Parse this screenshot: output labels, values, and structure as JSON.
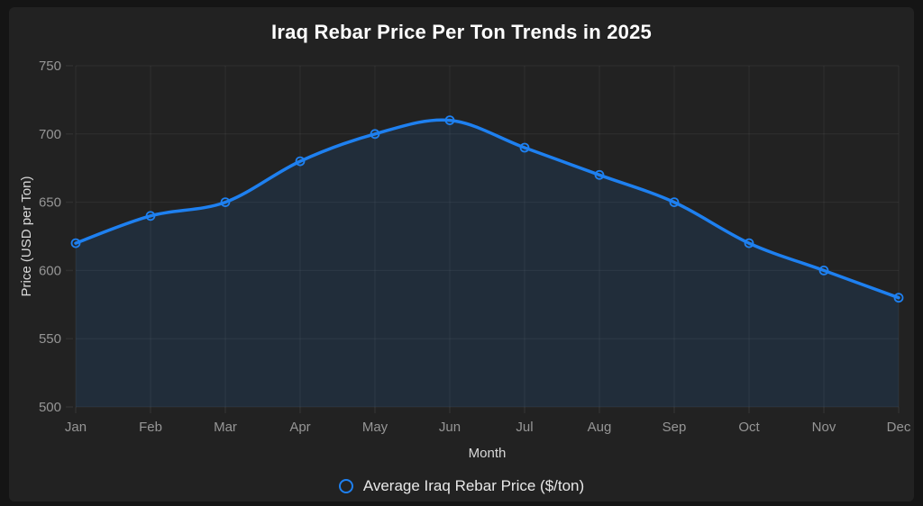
{
  "chart_data": {
    "type": "line",
    "title": "Iraq Rebar Price Per Ton Trends in 2025",
    "xlabel": "Month",
    "ylabel": "Price (USD per Ton)",
    "categories": [
      "Jan",
      "Feb",
      "Mar",
      "Apr",
      "May",
      "Jun",
      "Jul",
      "Aug",
      "Sep",
      "Oct",
      "Nov",
      "Dec"
    ],
    "series": [
      {
        "name": "Average Iraq Rebar Price ($/ton)",
        "values": [
          620,
          640,
          650,
          680,
          700,
          710,
          690,
          670,
          650,
          620,
          600,
          580
        ]
      }
    ],
    "ylim": [
      500,
      750
    ],
    "yticks": [
      500,
      550,
      600,
      650,
      700,
      750
    ],
    "grid": true,
    "smooth": true,
    "marker": "open-circle",
    "legend_position": "bottom",
    "colors": {
      "line": "#1e80f0",
      "area": "rgba(30, 128, 240, 0.12)",
      "grid": "rgba(255, 255, 255, 0.06)",
      "tick_text": "#969696",
      "axis_title_text": "#d8d8d8",
      "title_text": "#ffffff",
      "card_background": "#222222",
      "page_background": "#151515",
      "legend_text": "#e8e8e8"
    }
  }
}
